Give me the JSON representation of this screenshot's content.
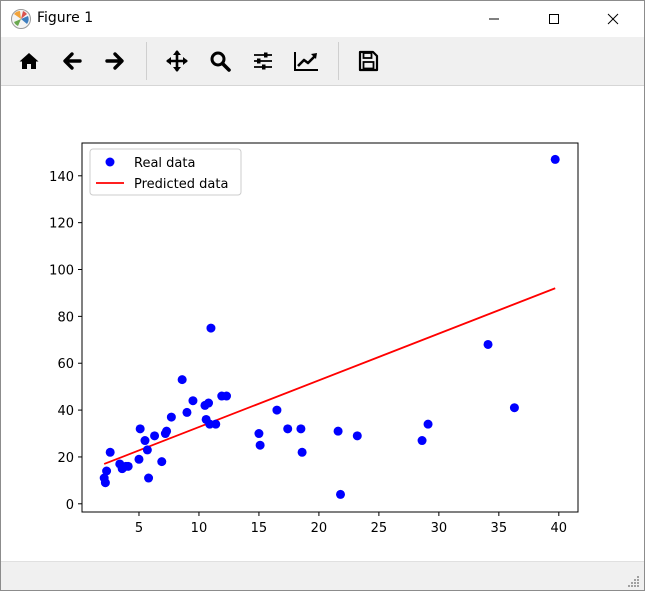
{
  "window": {
    "title": "Figure 1",
    "icon": "matplotlib-figure-icon",
    "controls": [
      "minimize-icon",
      "maximize-icon",
      "close-icon"
    ]
  },
  "toolbar": {
    "buttons": [
      {
        "name": "home",
        "icon": "home-icon"
      },
      {
        "name": "back",
        "icon": "arrow-left-icon"
      },
      {
        "name": "forward",
        "icon": "arrow-right-icon"
      },
      {
        "name": "pan",
        "icon": "move-icon"
      },
      {
        "name": "zoom",
        "icon": "zoom-icon"
      },
      {
        "name": "subplots",
        "icon": "sliders-icon"
      },
      {
        "name": "customize",
        "icon": "line-chart-icon"
      },
      {
        "name": "save",
        "icon": "floppy-disk-icon"
      }
    ]
  },
  "chart_data": {
    "type": "scatter",
    "title": "",
    "xlabel": "",
    "ylabel": "",
    "xlim": [
      0.25,
      41.6
    ],
    "ylim": [
      -3.5,
      154
    ],
    "xticks": [
      5,
      10,
      15,
      20,
      25,
      30,
      35,
      40
    ],
    "yticks": [
      0,
      20,
      40,
      60,
      80,
      100,
      120,
      140
    ],
    "grid": false,
    "legend_position": "upper-left",
    "series": [
      {
        "name": "Real data",
        "kind": "scatter",
        "color": "#0000ff",
        "points": [
          [
            2.1,
            11
          ],
          [
            2.2,
            9
          ],
          [
            2.3,
            14
          ],
          [
            2.6,
            22
          ],
          [
            3.4,
            17
          ],
          [
            3.6,
            15
          ],
          [
            3.9,
            16
          ],
          [
            4.1,
            16
          ],
          [
            5.0,
            19
          ],
          [
            5.1,
            32
          ],
          [
            5.5,
            27
          ],
          [
            5.7,
            23
          ],
          [
            5.8,
            11
          ],
          [
            6.3,
            29
          ],
          [
            6.9,
            18
          ],
          [
            7.2,
            30
          ],
          [
            7.3,
            31
          ],
          [
            7.7,
            37
          ],
          [
            8.6,
            53
          ],
          [
            9.0,
            39
          ],
          [
            9.5,
            44
          ],
          [
            10.5,
            42
          ],
          [
            10.6,
            36
          ],
          [
            10.8,
            43
          ],
          [
            10.9,
            34
          ],
          [
            11.0,
            75
          ],
          [
            11.4,
            34
          ],
          [
            11.9,
            46
          ],
          [
            12.3,
            46
          ],
          [
            15.0,
            30
          ],
          [
            15.1,
            25
          ],
          [
            16.5,
            40
          ],
          [
            17.4,
            32
          ],
          [
            18.5,
            32
          ],
          [
            18.6,
            22
          ],
          [
            21.6,
            31
          ],
          [
            21.8,
            4
          ],
          [
            23.2,
            29
          ],
          [
            28.6,
            27
          ],
          [
            29.1,
            34
          ],
          [
            34.1,
            68
          ],
          [
            36.3,
            41
          ],
          [
            39.7,
            147
          ]
        ]
      },
      {
        "name": "Predicted data",
        "kind": "line",
        "color": "#ff0000",
        "points": [
          [
            2.1,
            17
          ],
          [
            39.7,
            92
          ]
        ]
      }
    ]
  }
}
